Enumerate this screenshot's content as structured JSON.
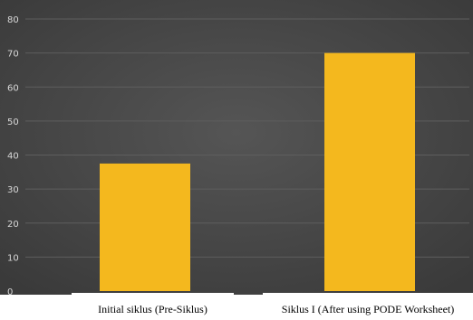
{
  "colors": {
    "background": "#4a4a4a",
    "bar": "#f4b81e",
    "gridline": "#5e5e5e",
    "tick_text": "#d9d9d9",
    "category_label_bg": "#ffffff"
  },
  "chart_data": {
    "type": "bar",
    "categories": [
      "Initial siklus (Pre-Siklus)",
      "Siklus I (After using PODE Worksheet)"
    ],
    "values": [
      37.5,
      70
    ],
    "yticks": [
      0,
      10,
      20,
      30,
      40,
      50,
      60,
      70,
      80
    ],
    "ylim": [
      0,
      80
    ],
    "grid": true,
    "legend": "none"
  }
}
